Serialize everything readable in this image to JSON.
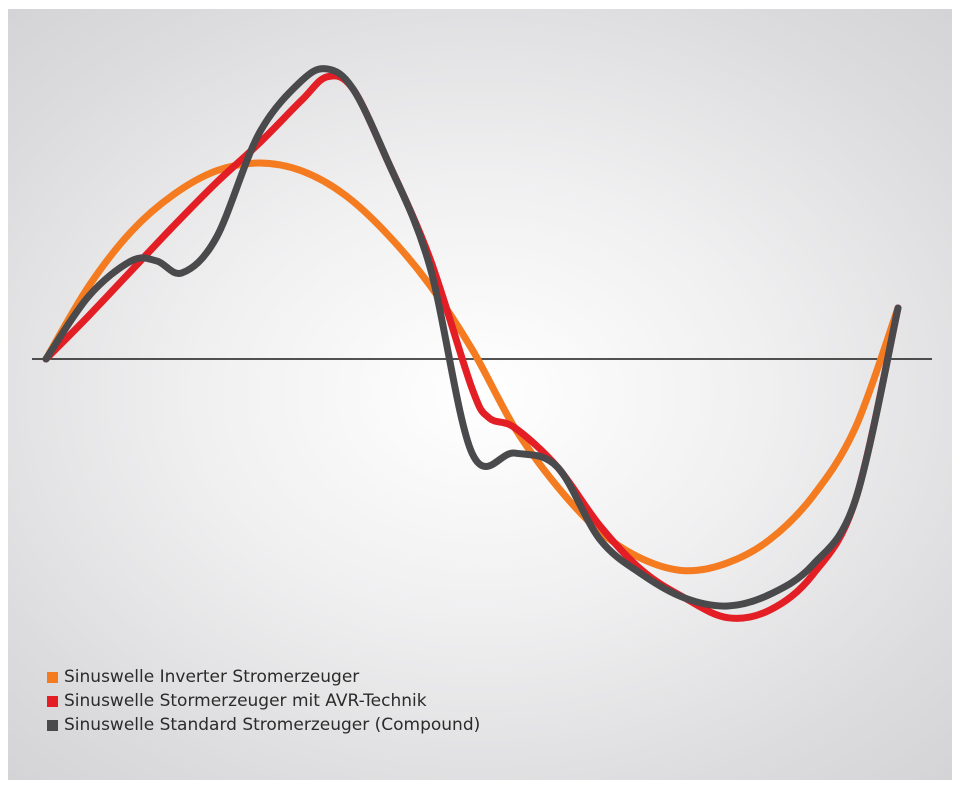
{
  "chart_data": {
    "type": "line",
    "title": "",
    "xlabel": "",
    "ylabel": "",
    "xlim": [
      0,
      1
    ],
    "ylim": [
      -1.35,
      1.35
    ],
    "grid": false,
    "axis": "zero-line only",
    "legend_position": "bottom-left",
    "series": [
      {
        "name": "Sinuswelle Inverter Stromerzeuger",
        "color": "#F47B20",
        "x": [
          0.0,
          0.05,
          0.1,
          0.15,
          0.2,
          0.25,
          0.3,
          0.35,
          0.4,
          0.45,
          0.5,
          0.55,
          0.6,
          0.65,
          0.7,
          0.75,
          0.8,
          0.85,
          0.9,
          0.95,
          1.0
        ],
        "y": [
          0.0,
          0.37,
          0.65,
          0.84,
          0.96,
          1.0,
          0.96,
          0.84,
          0.64,
          0.38,
          0.05,
          -0.35,
          -0.65,
          -0.88,
          -1.02,
          -1.08,
          -1.04,
          -0.92,
          -0.7,
          -0.35,
          0.26
        ]
      },
      {
        "name": "Sinuswelle Stormerzeuger mit AVR-Technik",
        "color": "#E31E24",
        "x": [
          0.0,
          0.05,
          0.1,
          0.15,
          0.2,
          0.25,
          0.3,
          0.33,
          0.36,
          0.4,
          0.45,
          0.5,
          0.52,
          0.55,
          0.6,
          0.65,
          0.7,
          0.75,
          0.8,
          0.85,
          0.9,
          0.95,
          1.0
        ],
        "y": [
          0.0,
          0.22,
          0.45,
          0.68,
          0.9,
          1.1,
          1.32,
          1.44,
          1.38,
          1.02,
          0.52,
          -0.15,
          -0.3,
          -0.35,
          -0.55,
          -0.85,
          -1.08,
          -1.22,
          -1.32,
          -1.28,
          -1.1,
          -0.72,
          0.26
        ]
      },
      {
        "name": "Sinuswelle Standard Stromerzeuger (Compound)",
        "color": "#4A4A4C",
        "x": [
          0.0,
          0.05,
          0.1,
          0.13,
          0.16,
          0.2,
          0.25,
          0.3,
          0.33,
          0.36,
          0.4,
          0.45,
          0.5,
          0.55,
          0.6,
          0.65,
          0.7,
          0.75,
          0.8,
          0.85,
          0.9,
          0.95,
          1.0
        ],
        "y": [
          0.0,
          0.32,
          0.5,
          0.5,
          0.44,
          0.62,
          1.15,
          1.42,
          1.48,
          1.38,
          1.02,
          0.48,
          -0.48,
          -0.48,
          -0.55,
          -0.92,
          -1.1,
          -1.22,
          -1.26,
          -1.2,
          -1.05,
          -0.72,
          0.26
        ]
      }
    ]
  },
  "legend": {
    "items": [
      {
        "label": "Sinuswelle Inverter Stromerzeuger",
        "color": "#F47B20"
      },
      {
        "label": "Sinuswelle Stormerzeuger mit AVR-Technik",
        "color": "#E31E24"
      },
      {
        "label": "Sinuswelle Standard Stromerzeuger (Compound)",
        "color": "#4A4A4C"
      }
    ]
  }
}
